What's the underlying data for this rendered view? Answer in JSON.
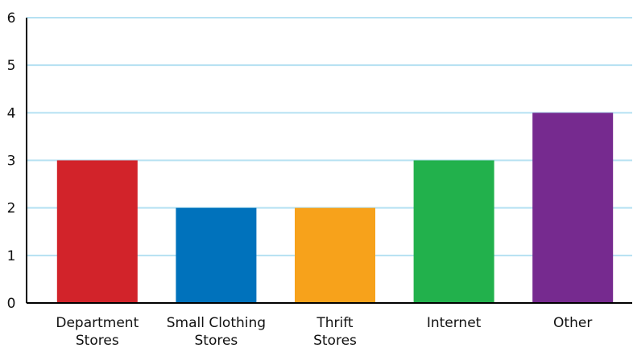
{
  "chart_data": {
    "type": "bar",
    "categories": [
      "Department Stores",
      "Small Clothing Stores",
      "Thrift Stores",
      "Internet",
      "Other"
    ],
    "values": [
      3,
      2,
      2,
      3,
      4
    ],
    "colors": [
      "#d2232a",
      "#0072bc",
      "#f7a21b",
      "#22b14c",
      "#762a8f"
    ],
    "ylim": [
      0,
      6
    ],
    "yticks": [
      0,
      1,
      2,
      3,
      4,
      5,
      6
    ],
    "grid": true
  }
}
